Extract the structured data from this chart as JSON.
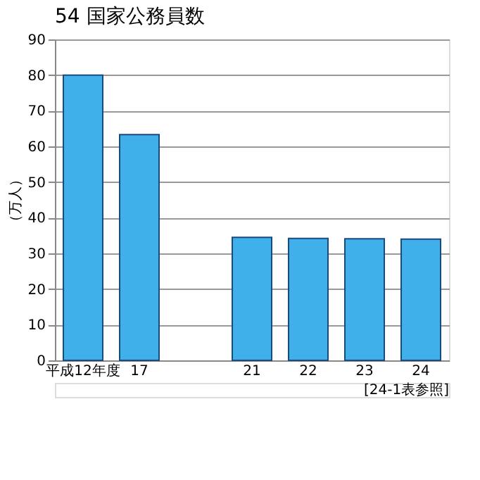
{
  "chart_data": {
    "type": "bar",
    "title": "54 国家公務員数",
    "ylabel": "（万人）",
    "categories": [
      "平成12年度",
      "17",
      null,
      "21",
      "22",
      "23",
      "24"
    ],
    "values": [
      80,
      63.3,
      null,
      34.5,
      34.2,
      34.1,
      34.0
    ],
    "color": "#3fb0ea",
    "ylim": [
      0,
      90
    ],
    "yticks": [
      0,
      10,
      20,
      30,
      40,
      50,
      60,
      70,
      80,
      90
    ],
    "grid": "y",
    "annotations": [
      "[24-1表参照]"
    ]
  }
}
